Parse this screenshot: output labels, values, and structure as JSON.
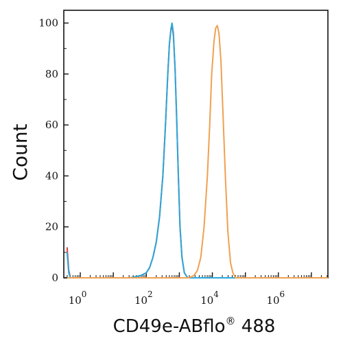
{
  "chart_data": {
    "type": "line",
    "xlabel": "CD49e-ABflo",
    "xlabel_superscript": "®",
    "xlabel_suffix": " 488",
    "ylabel": "Count",
    "x_scale": "log",
    "ylim": [
      0,
      105
    ],
    "xlim_log10": [
      -0.5,
      7.5
    ],
    "y_ticks": [
      0,
      20,
      40,
      60,
      80,
      100
    ],
    "x_major_exponents": [
      0,
      2,
      4,
      6
    ],
    "x_tick_base": "10",
    "grid": false,
    "legend": "none",
    "series": [
      {
        "color": "#e03a3a",
        "points": [
          [
            -0.4,
            12
          ],
          [
            -0.35,
            3
          ],
          [
            -0.3,
            0
          ],
          [
            1.5,
            0
          ],
          [
            1.7,
            0.5
          ],
          [
            1.85,
            1
          ],
          [
            2.0,
            2
          ],
          [
            2.1,
            4
          ],
          [
            2.2,
            8
          ],
          [
            2.3,
            14
          ],
          [
            2.4,
            24
          ],
          [
            2.5,
            40
          ],
          [
            2.58,
            60
          ],
          [
            2.65,
            80
          ],
          [
            2.7,
            92
          ],
          [
            2.75,
            98
          ],
          [
            2.78,
            99
          ],
          [
            2.82,
            95
          ],
          [
            2.87,
            82
          ],
          [
            2.92,
            62
          ],
          [
            2.97,
            40
          ],
          [
            3.02,
            20
          ],
          [
            3.08,
            8
          ],
          [
            3.15,
            2
          ],
          [
            3.25,
            0
          ],
          [
            7.5,
            0
          ]
        ]
      },
      {
        "color": "#29a8dc",
        "points": [
          [
            -0.4,
            10
          ],
          [
            -0.35,
            2
          ],
          [
            -0.3,
            0
          ],
          [
            1.5,
            0
          ],
          [
            1.7,
            0.5
          ],
          [
            1.85,
            1
          ],
          [
            2.0,
            2
          ],
          [
            2.1,
            4
          ],
          [
            2.2,
            8
          ],
          [
            2.3,
            14
          ],
          [
            2.4,
            24
          ],
          [
            2.5,
            40
          ],
          [
            2.58,
            60
          ],
          [
            2.65,
            80
          ],
          [
            2.7,
            92
          ],
          [
            2.75,
            98
          ],
          [
            2.78,
            100
          ],
          [
            2.82,
            96
          ],
          [
            2.87,
            82
          ],
          [
            2.92,
            62
          ],
          [
            2.97,
            40
          ],
          [
            3.02,
            20
          ],
          [
            3.08,
            8
          ],
          [
            3.15,
            2
          ],
          [
            3.25,
            0
          ],
          [
            7.5,
            0
          ]
        ]
      },
      {
        "color": "#f0a050",
        "points": [
          [
            -0.4,
            0
          ],
          [
            3.3,
            0
          ],
          [
            3.45,
            1
          ],
          [
            3.55,
            3
          ],
          [
            3.65,
            8
          ],
          [
            3.75,
            20
          ],
          [
            3.85,
            40
          ],
          [
            3.92,
            60
          ],
          [
            3.98,
            80
          ],
          [
            4.05,
            93
          ],
          [
            4.1,
            98
          ],
          [
            4.15,
            99
          ],
          [
            4.2,
            96
          ],
          [
            4.26,
            85
          ],
          [
            4.33,
            62
          ],
          [
            4.4,
            38
          ],
          [
            4.47,
            18
          ],
          [
            4.55,
            6
          ],
          [
            4.62,
            2
          ],
          [
            4.7,
            0
          ],
          [
            7.5,
            0
          ]
        ]
      }
    ]
  }
}
